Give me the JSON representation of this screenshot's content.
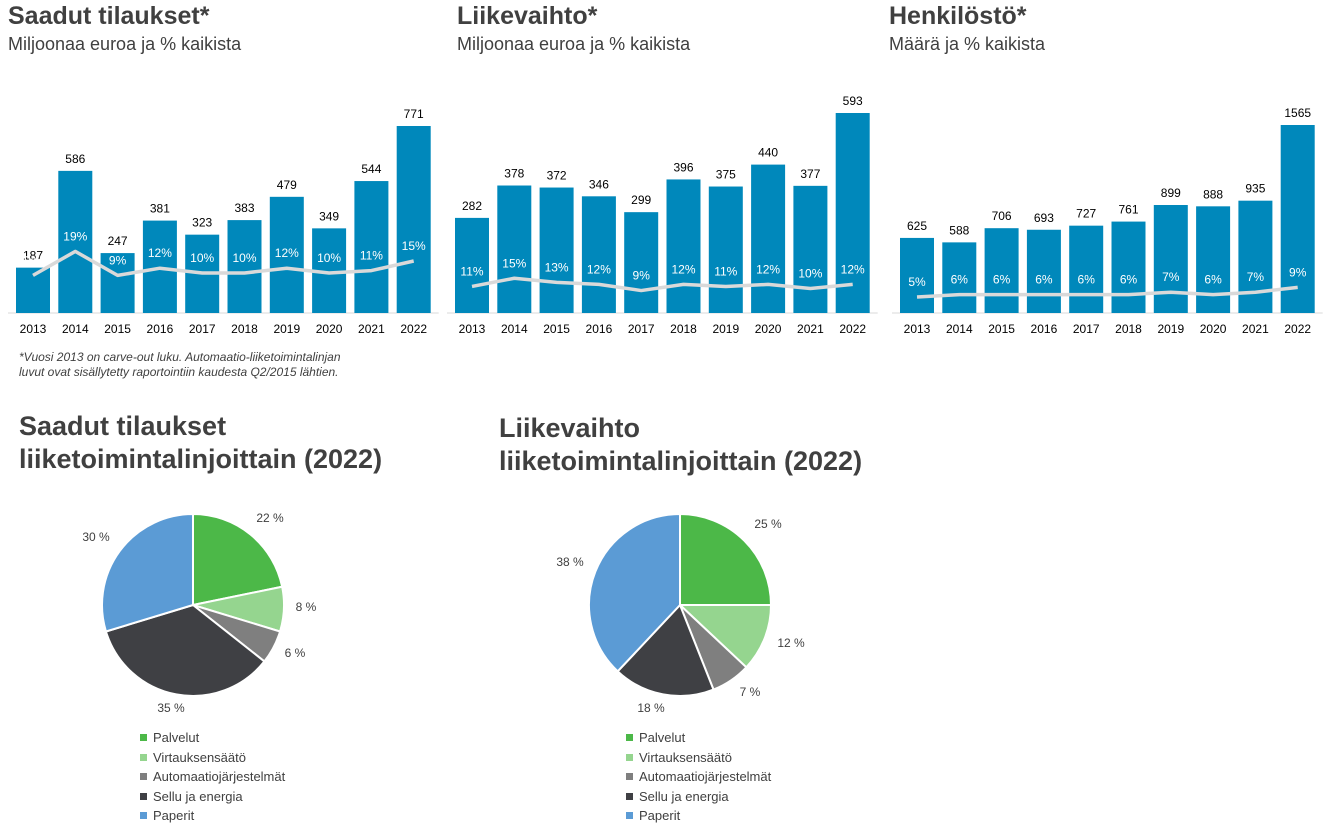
{
  "chart_data": [
    {
      "type": "bar",
      "title": "Saadut tilaukset*",
      "subtitle": "Miljoonaa euroa ja % kaikista",
      "categories": [
        "2013",
        "2014",
        "2015",
        "2016",
        "2017",
        "2018",
        "2019",
        "2020",
        "2021",
        "2022"
      ],
      "values": [
        187,
        586,
        247,
        381,
        323,
        383,
        479,
        349,
        544,
        771
      ],
      "value_labels": [
        "187",
        "586",
        "247",
        "381",
        "323",
        "383",
        "479",
        "349",
        "544",
        "771"
      ],
      "share_labels": [
        "9%",
        "19%",
        "9%",
        "12%",
        "10%",
        "10%",
        "12%",
        "10%",
        "11%",
        "15%"
      ],
      "share": [
        9,
        19,
        9,
        12,
        10,
        10,
        12,
        10,
        11,
        15
      ],
      "bar_color": "#0088BB",
      "line_color": "#D9D9D9"
    },
    {
      "type": "bar",
      "title": "Liikevaihto*",
      "subtitle": "Miljoonaa euroa ja % kaikista",
      "categories": [
        "2013",
        "2014",
        "2015",
        "2016",
        "2017",
        "2018",
        "2019",
        "2020",
        "2021",
        "2022"
      ],
      "values": [
        282,
        378,
        372,
        346,
        299,
        396,
        375,
        440,
        377,
        593
      ],
      "value_labels": [
        "282",
        "378",
        "372",
        "346",
        "299",
        "396",
        "375",
        "440",
        "377",
        "593"
      ],
      "share_labels": [
        "11%",
        "15%",
        "13%",
        "12%",
        "9%",
        "12%",
        "11%",
        "12%",
        "10%",
        "12%"
      ],
      "share": [
        11,
        15,
        13,
        12,
        9,
        12,
        11,
        12,
        10,
        12
      ],
      "bar_color": "#0088BB",
      "line_color": "#D9D9D9"
    },
    {
      "type": "bar",
      "title": "Henkilöstö*",
      "subtitle": "Määrä ja % kaikista",
      "categories": [
        "2013",
        "2014",
        "2015",
        "2016",
        "2017",
        "2018",
        "2019",
        "2020",
        "2021",
        "2022"
      ],
      "values": [
        625,
        588,
        706,
        693,
        727,
        761,
        899,
        888,
        935,
        1565
      ],
      "value_labels": [
        "625",
        "588",
        "706",
        "693",
        "727",
        "761",
        "899",
        "888",
        "935",
        "1565"
      ],
      "share_labels": [
        "5%",
        "6%",
        "6%",
        "6%",
        "6%",
        "6%",
        "7%",
        "6%",
        "7%",
        "9%"
      ],
      "share": [
        5,
        6,
        6,
        6,
        6,
        6,
        7,
        6,
        7,
        9
      ],
      "bar_color": "#0088BB",
      "line_color": "#D9D9D9"
    },
    {
      "type": "pie",
      "title": "Saadut tilaukset liiketoimintalinjoittain (2022)",
      "categories": [
        "Palvelut",
        "Virtauksensäätö",
        "Automaatiojärjestelmät",
        "Sellu ja energia",
        "Paperit"
      ],
      "values": [
        22,
        8,
        6,
        35,
        30
      ],
      "labels": [
        "22 %",
        "8 %",
        "6 %",
        "35 %",
        "30 %"
      ],
      "colors": [
        "#4CB848",
        "#95D58F",
        "#7F7F7F",
        "#3F4044",
        "#5B9BD5"
      ]
    },
    {
      "type": "pie",
      "title": "Liikevaihto liiketoimintalinjoittain (2022)",
      "categories": [
        "Palvelut",
        "Virtauksensäätö",
        "Automaatiojärjestelmät",
        "Sellu ja energia",
        "Paperit"
      ],
      "values": [
        25,
        12,
        7,
        18,
        38
      ],
      "labels": [
        "25 %",
        "12 %",
        "7 %",
        "18 %",
        "38 %"
      ],
      "colors": [
        "#4CB848",
        "#95D58F",
        "#7F7F7F",
        "#3F4044",
        "#5B9BD5"
      ]
    }
  ],
  "note": {
    "line1": "*Vuosi 2013 on carve-out luku. Automaatio-liiketoimintalinjan",
    "line2": "luvut ovat sisällytetty raportointiin kaudesta Q2/2015 lähtien."
  },
  "pie_titles": [
    {
      "line1": "Saadut tilaukset",
      "line2": "liiketoimintalinjoittain (2022)"
    },
    {
      "line1": "Liikevaihto",
      "line2": "liiketoimintalinjoittain (2022)"
    }
  ]
}
